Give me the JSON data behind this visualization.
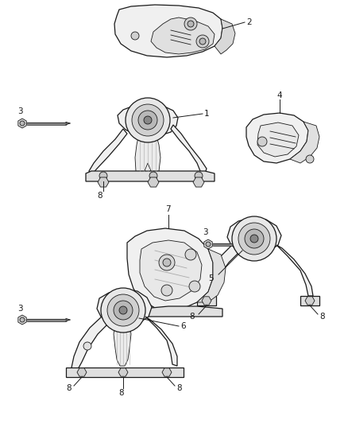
{
  "figsize": [
    4.38,
    5.33
  ],
  "dpi": 100,
  "bg": "#ffffff",
  "lc": "#1a1a1a",
  "fc": "#f5f5f5",
  "fc2": "#e8e8e8",
  "fc3": "#d8d8d8",
  "lw": 0.9,
  "lw2": 0.6,
  "label_fs": 7.5
}
